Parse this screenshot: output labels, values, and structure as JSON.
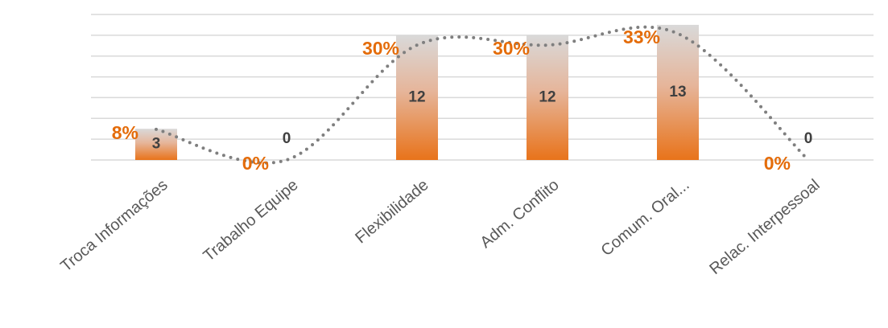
{
  "chart_data": {
    "type": "bar",
    "categories": [
      "Troca Informações",
      "Trabalho Equipe",
      "Flexibilidade",
      "Adm. Conflito",
      "Comum. Oral...",
      "Relac. Interpessoal"
    ],
    "series": [
      {
        "type": "bar",
        "color": "#e8731a",
        "values": [
          3,
          0,
          12,
          12,
          13,
          0
        ]
      },
      {
        "type": "line",
        "axis": "y2",
        "color": "#7f7f7f",
        "label_color": "#e46c0a",
        "values": [
          8,
          0,
          30,
          30,
          33,
          0
        ],
        "value_labels": [
          "8%",
          "0%",
          "30%",
          "30%",
          "33%",
          "0%"
        ]
      }
    ],
    "ylim": [
      0,
      14
    ],
    "yticks": [
      0,
      2,
      4,
      6,
      8,
      10,
      12,
      14
    ],
    "tick_labels": false,
    "y2lim": [
      0,
      38
    ],
    "grid": true
  }
}
